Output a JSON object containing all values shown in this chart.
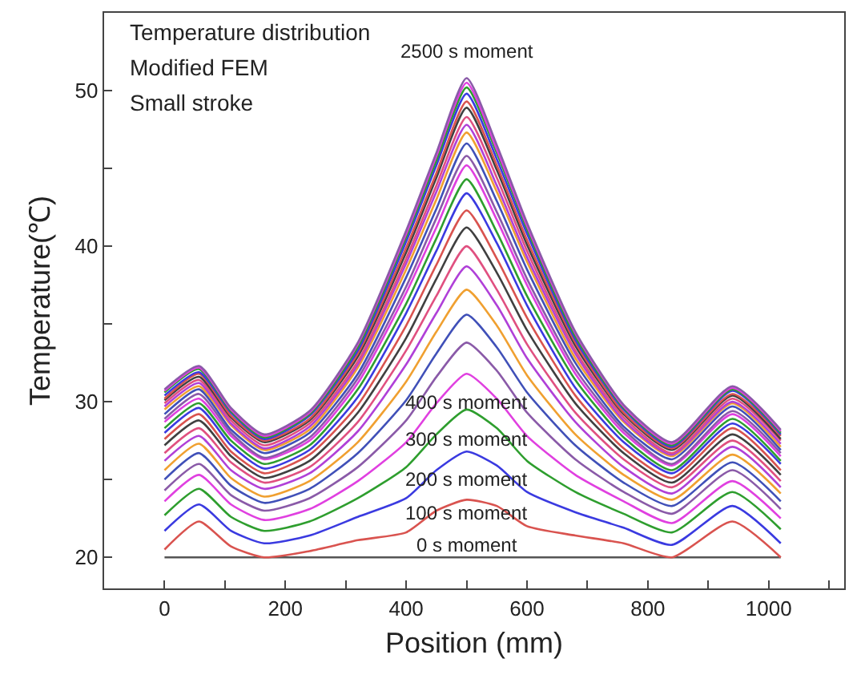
{
  "chart_data": {
    "type": "line",
    "xlabel": "Position (mm)",
    "ylabel": "Temperature(℃)",
    "x": [
      0,
      57,
      110,
      165,
      240,
      320,
      400,
      450,
      500,
      550,
      600,
      680,
      760,
      840,
      940,
      1020
    ],
    "xlim": [
      -100,
      1125
    ],
    "ylim": [
      18,
      55
    ],
    "xticks": [
      0,
      {
        "value": 100,
        "label": null
      },
      200,
      {
        "value": 300,
        "label": null
      },
      400,
      {
        "value": 500,
        "label": null
      },
      600,
      {
        "value": 700,
        "label": null
      },
      800,
      {
        "value": 900,
        "label": null
      },
      1000,
      {
        "value": 1100,
        "label": null
      }
    ],
    "yticks": [
      20,
      {
        "value": 25,
        "label": null
      },
      30,
      {
        "value": 35,
        "label": null
      },
      40,
      {
        "value": 45,
        "label": null
      },
      50
    ],
    "annotations": [
      "Temperature distribution",
      "Modified FEM",
      "Small stroke",
      "2500 s moment",
      "400 s moment",
      "300 s moment",
      "200 s moment",
      "100 s moment",
      "0 s moment"
    ],
    "series": [
      {
        "color": "#555555",
        "x": [
          0,
          1020
        ],
        "values": [
          20,
          20
        ]
      },
      {
        "color": "#d9534f",
        "values": [
          20.5,
          22.3,
          20.7,
          20.0,
          20.4,
          21.1,
          21.6,
          23.0,
          23.7,
          23.3,
          22.0,
          21.4,
          20.9,
          20.0,
          22.3,
          20.0
        ]
      },
      {
        "color": "#3a3ae0",
        "values": [
          21.7,
          23.4,
          21.7,
          20.9,
          21.4,
          22.6,
          23.8,
          25.6,
          26.8,
          25.9,
          24.2,
          22.9,
          21.9,
          20.8,
          23.3,
          20.9
        ]
      },
      {
        "color": "#2e9e2e",
        "values": [
          22.7,
          24.4,
          22.6,
          21.7,
          22.3,
          23.8,
          25.8,
          27.9,
          29.5,
          28.3,
          26.2,
          24.2,
          22.8,
          21.6,
          24.2,
          21.8
        ]
      },
      {
        "color": "#e040e0",
        "values": [
          23.6,
          25.3,
          23.4,
          22.4,
          23.1,
          24.9,
          27.4,
          29.9,
          31.8,
          30.2,
          27.8,
          25.3,
          23.6,
          22.2,
          24.9,
          22.5
        ]
      },
      {
        "color": "#8a5aa8",
        "values": [
          24.3,
          26.0,
          24.0,
          23.0,
          23.8,
          25.8,
          28.8,
          31.6,
          33.8,
          32.0,
          29.3,
          26.3,
          24.2,
          22.8,
          25.6,
          23.1
        ]
      },
      {
        "color": "#4050b8",
        "values": [
          25.0,
          26.7,
          24.6,
          23.5,
          24.4,
          26.7,
          30.1,
          33.1,
          35.6,
          33.5,
          30.6,
          27.2,
          24.8,
          23.3,
          26.1,
          23.6
        ]
      },
      {
        "color": "#f0a030",
        "values": [
          25.6,
          27.3,
          25.1,
          23.9,
          24.9,
          27.4,
          31.3,
          34.5,
          37.2,
          34.9,
          31.7,
          27.9,
          25.3,
          23.7,
          26.6,
          24.1
        ]
      },
      {
        "color": "#b040d8",
        "values": [
          26.2,
          27.8,
          25.6,
          24.4,
          25.4,
          28.1,
          32.4,
          35.7,
          38.7,
          36.2,
          32.8,
          28.7,
          25.8,
          24.1,
          27.1,
          24.5
        ]
      },
      {
        "color": "#e05080",
        "values": [
          26.7,
          28.3,
          26.1,
          24.8,
          25.8,
          28.7,
          33.3,
          36.8,
          40.0,
          37.2,
          33.7,
          29.3,
          26.3,
          24.5,
          27.5,
          24.9
        ]
      },
      {
        "color": "#404040",
        "values": [
          27.2,
          28.8,
          26.5,
          25.1,
          26.2,
          29.3,
          34.1,
          37.9,
          41.2,
          38.3,
          34.6,
          29.9,
          26.7,
          24.8,
          27.9,
          25.3
        ]
      },
      {
        "color": "#d9534f",
        "values": [
          27.6,
          29.2,
          26.8,
          25.4,
          26.6,
          29.8,
          34.9,
          38.8,
          42.3,
          39.2,
          35.4,
          30.4,
          27.0,
          25.1,
          28.3,
          25.6
        ]
      },
      {
        "color": "#3a3ae0",
        "values": [
          28.0,
          29.6,
          27.2,
          25.7,
          26.9,
          30.3,
          35.7,
          39.7,
          43.4,
          40.2,
          36.2,
          30.9,
          27.4,
          25.4,
          28.6,
          26.0
        ]
      },
      {
        "color": "#2e9e2e",
        "values": [
          28.3,
          29.9,
          27.5,
          26.0,
          27.2,
          30.8,
          36.3,
          40.5,
          44.3,
          40.9,
          36.8,
          31.4,
          27.7,
          25.6,
          28.9,
          26.2
        ]
      },
      {
        "color": "#e040e0",
        "values": [
          28.7,
          30.2,
          27.8,
          26.3,
          27.5,
          31.2,
          37.0,
          41.2,
          45.2,
          41.7,
          37.5,
          31.8,
          28.0,
          25.9,
          29.2,
          26.5
        ]
      },
      {
        "color": "#8a5aa8",
        "values": [
          28.9,
          30.5,
          28.0,
          26.4,
          27.7,
          31.5,
          37.4,
          41.8,
          45.8,
          42.2,
          37.9,
          32.1,
          28.2,
          26.0,
          29.4,
          26.7
        ]
      },
      {
        "color": "#4050b8",
        "values": [
          29.2,
          30.8,
          28.2,
          26.7,
          28.0,
          31.8,
          38.0,
          42.4,
          46.6,
          42.9,
          38.5,
          32.5,
          28.4,
          26.3,
          29.7,
          26.9
        ]
      },
      {
        "color": "#f0a030",
        "values": [
          29.5,
          31.0,
          28.5,
          26.9,
          28.2,
          32.2,
          38.5,
          43.0,
          47.3,
          43.5,
          39.0,
          32.8,
          28.7,
          26.5,
          29.9,
          27.1
        ]
      },
      {
        "color": "#b040d8",
        "values": [
          29.7,
          31.2,
          28.6,
          27.0,
          28.4,
          32.4,
          38.9,
          43.5,
          47.8,
          43.9,
          39.3,
          33.1,
          28.8,
          26.6,
          30.0,
          27.3
        ]
      },
      {
        "color": "#e05080",
        "values": [
          29.9,
          31.4,
          28.8,
          27.2,
          28.6,
          32.6,
          39.2,
          43.9,
          48.3,
          44.4,
          39.7,
          33.3,
          29.0,
          26.7,
          30.2,
          27.5
        ]
      },
      {
        "color": "#404040",
        "values": [
          30.1,
          31.6,
          29.0,
          27.4,
          28.8,
          32.9,
          39.6,
          44.4,
          48.9,
          44.9,
          40.1,
          33.6,
          29.2,
          26.9,
          30.4,
          27.6
        ]
      },
      {
        "color": "#d9534f",
        "values": [
          30.2,
          31.8,
          29.1,
          27.5,
          28.9,
          33.1,
          39.9,
          44.7,
          49.3,
          45.2,
          40.4,
          33.8,
          29.3,
          27.0,
          30.5,
          27.8
        ]
      },
      {
        "color": "#3a3ae0",
        "values": [
          30.4,
          31.9,
          29.3,
          27.6,
          29.1,
          33.3,
          40.3,
          45.2,
          49.8,
          45.6,
          40.8,
          34.0,
          29.5,
          27.1,
          30.7,
          27.9
        ]
      },
      {
        "color": "#2e9e2e",
        "values": [
          30.6,
          32.1,
          29.4,
          27.7,
          29.2,
          33.5,
          40.6,
          45.5,
          50.2,
          46.0,
          41.1,
          34.2,
          29.6,
          27.2,
          30.8,
          28.0
        ]
      },
      {
        "color": "#e040e0",
        "values": [
          30.7,
          32.2,
          29.5,
          27.8,
          29.3,
          33.7,
          40.8,
          45.8,
          50.5,
          46.2,
          41.3,
          34.4,
          29.7,
          27.3,
          30.9,
          28.1
        ]
      },
      {
        "color": "#8a5aa8",
        "values": [
          30.8,
          32.3,
          29.6,
          27.9,
          29.4,
          33.8,
          41.0,
          46.0,
          50.8,
          46.5,
          41.5,
          34.5,
          29.8,
          27.4,
          31.0,
          28.2
        ]
      }
    ]
  }
}
